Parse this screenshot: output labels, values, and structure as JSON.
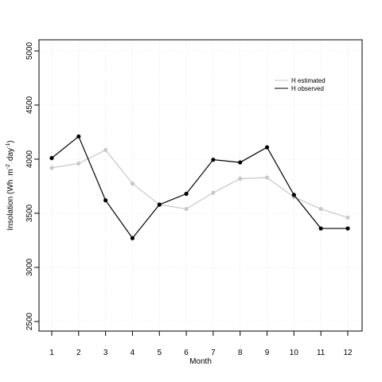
{
  "chart_data": {
    "type": "line",
    "title": "",
    "xlabel": "Month",
    "ylabel": {
      "main": "Insolation (Wh",
      "mid": "m",
      "sup1": "-2",
      "mid2": "day",
      "sup2": "-1",
      "end": ")"
    },
    "x": [
      1,
      2,
      3,
      4,
      5,
      6,
      7,
      8,
      9,
      10,
      11,
      12
    ],
    "x_ticks": [
      "1",
      "2",
      "3",
      "4",
      "5",
      "6",
      "7",
      "8",
      "9",
      "10",
      "11",
      "12"
    ],
    "y_ticks": [
      "2500",
      "3000",
      "3500",
      "4000",
      "4500",
      "5000"
    ],
    "y_tick_values": [
      2500,
      3000,
      3500,
      4000,
      4500,
      5000
    ],
    "xlim": [
      0.5,
      12.5
    ],
    "ylim": [
      2500,
      5000
    ],
    "grid": true,
    "legend_position": "top-right",
    "series": [
      {
        "name": "H estimated",
        "color": "#c8c8c8",
        "values": [
          3920,
          3960,
          4085,
          3775,
          3580,
          3540,
          3690,
          3820,
          3830,
          3650,
          3540,
          3460
        ]
      },
      {
        "name": "H observed",
        "color": "#000000",
        "values": [
          4010,
          4210,
          3620,
          3270,
          3580,
          3680,
          3995,
          3970,
          4110,
          3670,
          3360,
          3360
        ]
      }
    ]
  }
}
